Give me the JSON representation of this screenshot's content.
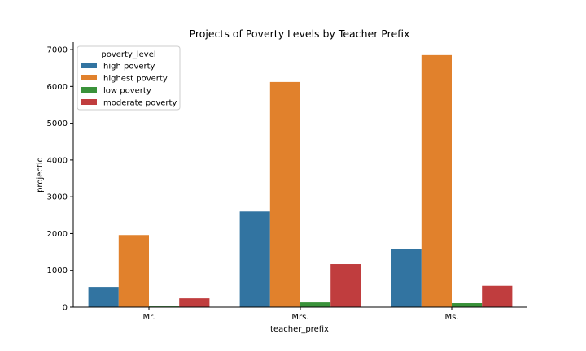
{
  "chart_data": {
    "type": "bar",
    "title": "Projects of Poverty Levels by Teacher Prefix",
    "xlabel": "teacher_prefix",
    "ylabel": "projectid",
    "categories": [
      "Mr.",
      "Mrs.",
      "Ms."
    ],
    "ylim": [
      0,
      7200
    ],
    "yticks": [
      0,
      1000,
      2000,
      3000,
      4000,
      5000,
      6000,
      7000
    ],
    "grid": false,
    "legend": {
      "title": "poverty_level",
      "placement": "top-left"
    },
    "series": [
      {
        "name": "high poverty",
        "color": "#3274a1",
        "values": [
          550,
          2600,
          1590
        ]
      },
      {
        "name": "highest poverty",
        "color": "#e1812c",
        "values": [
          1960,
          6120,
          6850
        ]
      },
      {
        "name": "low poverty",
        "color": "#3a923a",
        "values": [
          20,
          130,
          110
        ]
      },
      {
        "name": "moderate poverty",
        "color": "#c03d3e",
        "values": [
          240,
          1170,
          580
        ]
      }
    ]
  }
}
